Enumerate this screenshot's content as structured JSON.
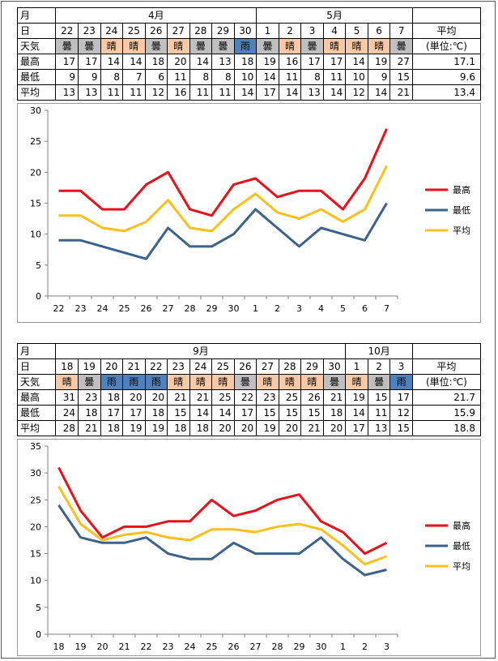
{
  "labels": {
    "month": "月",
    "day": "日",
    "weather": "天気",
    "high": "最高",
    "low": "最低",
    "avg": "平均",
    "avg_header": "平均",
    "unit": "(単位:℃)"
  },
  "colors": {
    "sunny": "#f8c9a4",
    "cloudy": "#bfbfbf",
    "rainy": "#4f81bd",
    "high_line": "#e8101a",
    "low_line": "#3c628c",
    "avg_line": "#fbc01c",
    "grid": "#d9d9d9"
  },
  "tables": [
    {
      "months": [
        {
          "label": "4月",
          "span": 9
        },
        {
          "label": "5月",
          "span": 7
        }
      ],
      "days": [
        "22",
        "23",
        "24",
        "25",
        "26",
        "27",
        "28",
        "29",
        "30",
        "1",
        "2",
        "3",
        "4",
        "5",
        "6",
        "7"
      ],
      "weather": [
        "曇",
        "曇",
        "晴",
        "晴",
        "曇",
        "晴",
        "曇",
        "曇",
        "雨",
        "曇",
        "晴",
        "曇",
        "晴",
        "晴",
        "晴",
        "曇"
      ],
      "weather_types": [
        "cloudy",
        "cloudy",
        "sunny",
        "sunny",
        "cloudy",
        "sunny",
        "cloudy",
        "cloudy",
        "rainy",
        "cloudy",
        "sunny",
        "cloudy",
        "sunny",
        "sunny",
        "sunny",
        "cloudy"
      ],
      "high": [
        17,
        17,
        14,
        14,
        18,
        20,
        14,
        13,
        18,
        19,
        16,
        17,
        17,
        14,
        19,
        27
      ],
      "low": [
        9,
        9,
        8,
        7,
        6,
        11,
        8,
        8,
        10,
        14,
        11,
        8,
        11,
        10,
        9,
        15
      ],
      "avg": [
        13,
        13,
        11,
        11,
        12,
        16,
        11,
        11,
        14,
        17,
        14,
        13,
        14,
        12,
        14,
        21
      ],
      "summary": {
        "high": "17.1",
        "low": "9.6",
        "avg": "13.4"
      }
    },
    {
      "months": [
        {
          "label": "9月",
          "span": 13
        },
        {
          "label": "10月",
          "span": 3
        }
      ],
      "days": [
        "18",
        "19",
        "20",
        "21",
        "22",
        "23",
        "24",
        "25",
        "26",
        "27",
        "28",
        "29",
        "30",
        "1",
        "2",
        "3"
      ],
      "weather": [
        "晴",
        "曇",
        "雨",
        "雨",
        "雨",
        "晴",
        "晴",
        "晴",
        "曇",
        "晴",
        "晴",
        "晴",
        "曇",
        "晴",
        "曇",
        "雨"
      ],
      "weather_types": [
        "sunny",
        "cloudy",
        "rainy",
        "rainy",
        "rainy",
        "sunny",
        "sunny",
        "sunny",
        "cloudy",
        "sunny",
        "sunny",
        "sunny",
        "cloudy",
        "sunny",
        "cloudy",
        "rainy"
      ],
      "high": [
        31,
        23,
        18,
        20,
        20,
        21,
        21,
        25,
        22,
        23,
        25,
        26,
        21,
        19,
        15,
        17
      ],
      "low": [
        24,
        18,
        17,
        17,
        18,
        15,
        14,
        14,
        17,
        15,
        15,
        15,
        18,
        14,
        11,
        12
      ],
      "avg": [
        28,
        21,
        18,
        19,
        19,
        18,
        18,
        20,
        20,
        19,
        20,
        21,
        20,
        17,
        13,
        15
      ],
      "summary": {
        "high": "21.7",
        "low": "15.9",
        "avg": "18.8"
      }
    }
  ],
  "chart_data": [
    {
      "type": "line",
      "x": [
        "22",
        "23",
        "24",
        "25",
        "26",
        "27",
        "28",
        "29",
        "30",
        "1",
        "2",
        "3",
        "4",
        "5",
        "6",
        "7"
      ],
      "ylim": [
        0,
        30
      ],
      "yticks": [
        0,
        5,
        10,
        15,
        20,
        25,
        30
      ],
      "grid": false,
      "legend": "right",
      "series": [
        {
          "name": "最高",
          "values": [
            17,
            17,
            14,
            14,
            18,
            20,
            14,
            13,
            18,
            19,
            16,
            17,
            17,
            14,
            19,
            27
          ]
        },
        {
          "name": "最低",
          "values": [
            9,
            9,
            8,
            7,
            6,
            11,
            8,
            8,
            10,
            14,
            11,
            8,
            11,
            10,
            9,
            15
          ]
        },
        {
          "name": "平均",
          "values": [
            13,
            13,
            11,
            10.5,
            12,
            15.5,
            11,
            10.5,
            14,
            16.5,
            13.5,
            12.5,
            14,
            12,
            14,
            21
          ]
        }
      ]
    },
    {
      "type": "line",
      "x": [
        "18",
        "19",
        "20",
        "21",
        "22",
        "23",
        "24",
        "25",
        "26",
        "27",
        "28",
        "29",
        "30",
        "1",
        "2",
        "3"
      ],
      "ylim": [
        0,
        35
      ],
      "yticks": [
        0,
        5,
        10,
        15,
        20,
        25,
        30,
        35
      ],
      "grid": false,
      "legend": "right",
      "series": [
        {
          "name": "最高",
          "values": [
            31,
            23,
            18,
            20,
            20,
            21,
            21,
            25,
            22,
            23,
            25,
            26,
            21,
            19,
            15,
            17
          ]
        },
        {
          "name": "最低",
          "values": [
            24,
            18,
            17,
            17,
            18,
            15,
            14,
            14,
            17,
            15,
            15,
            15,
            18,
            14,
            11,
            12
          ]
        },
        {
          "name": "平均",
          "values": [
            27.5,
            20.5,
            17.5,
            18.5,
            19,
            18,
            17.5,
            19.5,
            19.5,
            19,
            20,
            20.5,
            19.5,
            16.5,
            13,
            14.5
          ]
        }
      ]
    }
  ]
}
